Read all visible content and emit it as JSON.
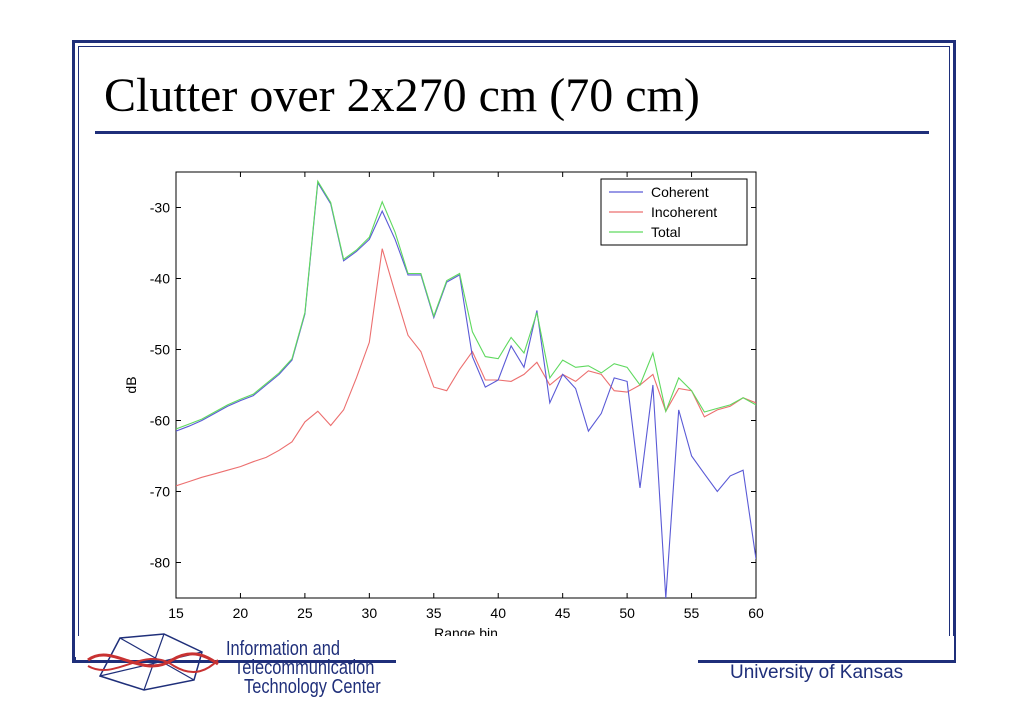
{
  "slide": {
    "title": "Clutter over 2x270 cm (70 cm)",
    "footer": {
      "university": "University of Kansas",
      "logo_lines": [
        "Information and",
        "Telecommunication",
        "Technology Center"
      ]
    }
  },
  "colors": {
    "frame": "#1f2f7a",
    "coherent": "#5a5ad6",
    "incoherent": "#ec6f6f",
    "total": "#5fd95f"
  },
  "chart_data": {
    "type": "line",
    "title": "",
    "xlabel": "Range bin",
    "ylabel": "dB",
    "xlim": [
      15,
      60
    ],
    "ylim": [
      -85,
      -25
    ],
    "xticks": [
      15,
      20,
      25,
      30,
      35,
      40,
      45,
      50,
      55,
      60
    ],
    "yticks": [
      -80,
      -70,
      -60,
      -50,
      -40,
      -30
    ],
    "grid": false,
    "legend_position": "top-right",
    "x": [
      15,
      16,
      17,
      18,
      19,
      20,
      21,
      22,
      23,
      24,
      25,
      26,
      27,
      28,
      29,
      30,
      31,
      32,
      33,
      34,
      35,
      36,
      37,
      38,
      39,
      40,
      41,
      42,
      43,
      44,
      45,
      46,
      47,
      48,
      49,
      50,
      51,
      52,
      53,
      54,
      55,
      56,
      57,
      58,
      59,
      60
    ],
    "series": [
      {
        "name": "Coherent",
        "color_key": "coherent",
        "values": [
          -61.5,
          -60.8,
          -60,
          -59,
          -58,
          -57.2,
          -56.5,
          -55,
          -53.5,
          -51.5,
          -45,
          -26.5,
          -29.5,
          -37.5,
          -36.2,
          -34.5,
          -30.5,
          -34.5,
          -39.5,
          -39.5,
          -45.5,
          -40.5,
          -39.5,
          -51,
          -55.3,
          -54.3,
          -49.5,
          -52.5,
          -44.5,
          -57.5,
          -53.5,
          -55.5,
          -61.5,
          -59,
          -54,
          -54.5,
          -69.5,
          -55,
          -85,
          -58.5,
          -65,
          -67.5,
          -70,
          -67.8,
          -67,
          -79.5
        ]
      },
      {
        "name": "Incoherent",
        "color_key": "incoherent",
        "values": [
          -69.2,
          -68.6,
          -68,
          -67.5,
          -67,
          -66.5,
          -65.8,
          -65.2,
          -64.2,
          -63,
          -60.2,
          -58.7,
          -60.7,
          -58.5,
          -54,
          -49,
          -35.8,
          -42,
          -48,
          -50.3,
          -55.3,
          -55.8,
          -52.8,
          -50.3,
          -54.3,
          -54.3,
          -54.5,
          -53.5,
          -51.8,
          -55,
          -53.5,
          -54.5,
          -53,
          -53.5,
          -55.8,
          -56,
          -55,
          -53.5,
          -58.7,
          -55.5,
          -55.8,
          -59.5,
          -58.5,
          -58,
          -56.8,
          -57.5
        ]
      },
      {
        "name": "Total",
        "color_key": "total",
        "values": [
          -61.2,
          -60.5,
          -59.8,
          -58.8,
          -57.8,
          -57,
          -56.3,
          -54.8,
          -53.3,
          -51.3,
          -44.8,
          -26.3,
          -29.3,
          -37.3,
          -36,
          -34.2,
          -29.2,
          -33.5,
          -39.3,
          -39.3,
          -45.3,
          -40.3,
          -39.3,
          -47.5,
          -51,
          -51.3,
          -48.3,
          -50.5,
          -44.8,
          -54,
          -51.5,
          -52.5,
          -52.3,
          -53.3,
          -52,
          -52.5,
          -55,
          -50.5,
          -58.7,
          -54,
          -55.8,
          -58.8,
          -58.3,
          -57.8,
          -56.8,
          -57.8
        ]
      }
    ]
  }
}
